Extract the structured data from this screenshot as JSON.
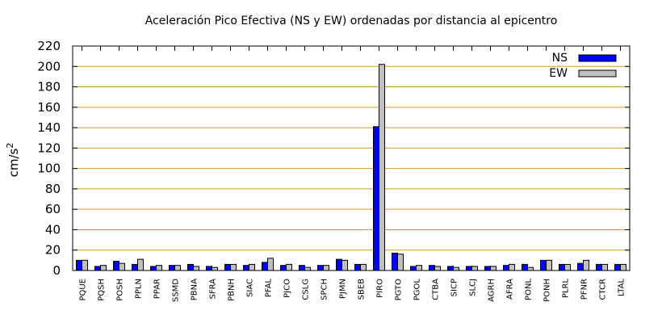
{
  "chart_data": {
    "type": "bar",
    "title": "Aceleración Pico Efectiva (NS y EW) ordenadas por distancia al epicentro",
    "xlabel": "",
    "ylabel": "cm/s",
    "ylabel_sup": "2",
    "ylim": [
      0,
      220
    ],
    "yticks": [
      0,
      20,
      40,
      60,
      80,
      100,
      120,
      140,
      160,
      180,
      200,
      220
    ],
    "grid": true,
    "legend_position": "top-right",
    "colors": {
      "NS": "#0000ff",
      "EW": "#c0c0c0",
      "grid": "#d4a017"
    },
    "categories": [
      "PQUE",
      "PQSH",
      "POSH",
      "PPLN",
      "PPAR",
      "SSMD",
      "PBNA",
      "SFRA",
      "PBNH",
      "SIAC",
      "PFAL",
      "PJCO",
      "CSLG",
      "SPCH",
      "PJMN",
      "SBEB",
      "PIRO",
      "PGTO",
      "PGOL",
      "CTBA",
      "SICP",
      "SLCJ",
      "AGRH",
      "AFRA",
      "PONL",
      "PONH",
      "PLRL",
      "PFNR",
      "CTCR",
      "LTAL"
    ],
    "series": [
      {
        "name": "NS",
        "values": [
          10,
          4,
          9,
          6,
          4,
          5,
          6,
          4,
          6,
          5,
          8,
          5,
          5,
          5,
          11,
          6,
          141,
          17,
          4,
          5,
          4,
          4,
          4,
          5,
          6,
          10,
          6,
          7,
          6,
          6
        ]
      },
      {
        "name": "EW",
        "values": [
          10,
          5,
          7,
          11,
          5,
          5,
          4,
          3,
          6,
          6,
          12,
          6,
          3,
          5,
          10,
          6,
          202,
          16,
          5,
          4,
          3,
          4,
          4,
          6,
          3,
          10,
          6,
          10,
          6,
          6
        ]
      }
    ]
  }
}
